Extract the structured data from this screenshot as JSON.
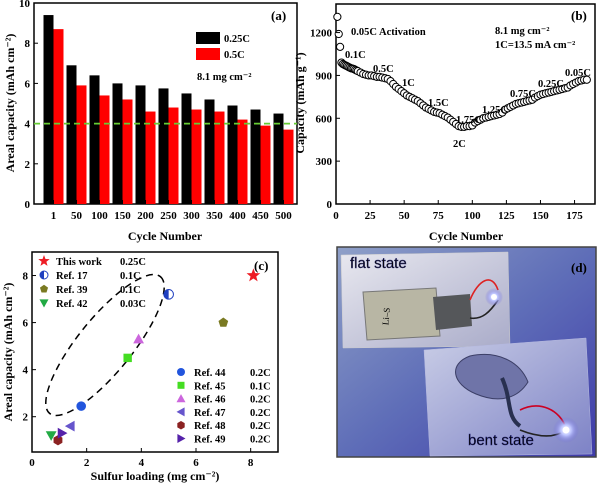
{
  "chart_data": [
    {
      "panel": "(a)",
      "type": "bar",
      "xlabel": "Cycle Number",
      "ylabel": "Areal capacity (mAh cm⁻²)",
      "ylim": [
        0,
        10
      ],
      "yticks": [
        "0",
        "2",
        "4",
        "6",
        "8",
        "10"
      ],
      "categories": [
        "1",
        "50",
        "100",
        "150",
        "200",
        "250",
        "300",
        "350",
        "400",
        "450",
        "500"
      ],
      "series": [
        {
          "name": "0.25C",
          "color": "#000000",
          "values": [
            9.4,
            6.9,
            6.4,
            6.0,
            5.9,
            5.75,
            5.5,
            5.2,
            4.9,
            4.7,
            4.5
          ]
        },
        {
          "name": "0.5C",
          "color": "#ff0000",
          "values": [
            8.7,
            5.9,
            5.4,
            5.2,
            4.6,
            4.8,
            4.7,
            4.6,
            4.2,
            3.9,
            3.7
          ]
        }
      ],
      "reference_line": {
        "value": 4.0,
        "color": "#66cc33",
        "style": "dashed"
      },
      "annotation": "8.1 mg cm⁻²",
      "legend_position": "top-right",
      "grid": false
    },
    {
      "panel": "(b)",
      "type": "scatter",
      "xlabel": "Cycle Number",
      "ylabel": "Capacity (mAh g⁻¹)",
      "xlim": [
        0,
        190
      ],
      "ylim": [
        0,
        1400
      ],
      "xticks": [
        "0",
        "25",
        "50",
        "75",
        "100",
        "125",
        "150",
        "175"
      ],
      "yticks": [
        "0",
        "300",
        "600",
        "900",
        "1200"
      ],
      "annotations": [
        "0.05C Activation",
        "0.1C",
        "0.5C",
        "1C",
        "1.5C",
        "1.75C",
        "2C",
        "1.25C",
        "0.75C",
        "0.25C",
        "0.05C",
        "8.1 mg cm⁻²",
        "1C=13.5 mA cm⁻²"
      ],
      "segments": [
        {
          "rate": "0.05C",
          "x": [
            1,
            2,
            3
          ],
          "y": [
            1310,
            1190,
            1100
          ]
        },
        {
          "rate": "0.1C",
          "x": [
            4,
            5,
            6,
            7,
            8,
            9,
            10,
            11,
            12,
            13,
            14,
            15
          ],
          "y": [
            990,
            980,
            975,
            970,
            965,
            960,
            955,
            950,
            948,
            945,
            940,
            935
          ]
        },
        {
          "rate": "0.5C",
          "x": [
            16,
            18,
            20,
            22,
            24,
            26,
            28,
            30,
            32,
            34,
            36,
            38
          ],
          "y": [
            930,
            920,
            910,
            905,
            900,
            900,
            895,
            890,
            890,
            885,
            880,
            875
          ]
        },
        {
          "rate": "1C",
          "x": [
            40,
            42,
            44,
            46,
            48,
            50,
            52,
            54,
            56,
            58,
            60
          ],
          "y": [
            860,
            840,
            820,
            805,
            790,
            775,
            760,
            750,
            740,
            730,
            720
          ]
        },
        {
          "rate": "1.5C",
          "x": [
            62,
            64,
            66,
            68,
            70,
            72,
            74,
            76,
            78,
            80
          ],
          "y": [
            705,
            690,
            675,
            665,
            655,
            645,
            640,
            635,
            625,
            615
          ]
        },
        {
          "rate": "1.75C",
          "x": [
            82,
            84,
            86,
            88
          ],
          "y": [
            605,
            590,
            575,
            560
          ]
        },
        {
          "rate": "2C",
          "x": [
            90,
            92,
            94,
            96,
            98,
            100
          ],
          "y": [
            545,
            540,
            540,
            545,
            545,
            550
          ]
        },
        {
          "rate": "1.25C",
          "x": [
            102,
            104,
            106,
            108,
            110,
            112,
            114,
            116,
            118,
            120,
            122
          ],
          "y": [
            570,
            580,
            590,
            600,
            605,
            610,
            615,
            620,
            625,
            630,
            640
          ]
        },
        {
          "rate": "0.75C",
          "x": [
            124,
            126,
            128,
            130,
            132,
            134,
            136,
            138,
            140,
            142,
            144
          ],
          "y": [
            660,
            670,
            680,
            690,
            700,
            705,
            710,
            715,
            720,
            725,
            730
          ]
        },
        {
          "rate": "0.25C",
          "x": [
            146,
            148,
            150,
            152,
            154,
            156,
            158,
            160,
            162,
            164,
            166,
            168,
            170
          ],
          "y": [
            745,
            755,
            765,
            770,
            775,
            780,
            785,
            790,
            795,
            800,
            805,
            810,
            815
          ]
        },
        {
          "rate": "0.05C",
          "x": [
            172,
            174,
            176,
            178,
            180,
            182,
            184
          ],
          "y": [
            830,
            840,
            850,
            860,
            865,
            870,
            870
          ]
        }
      ],
      "grid": false
    },
    {
      "panel": "(c)",
      "type": "scatter",
      "xlabel": "Sulfur loading (mg cm⁻²)",
      "ylabel": "Areal capacity (mAh cm⁻²)",
      "xlim": [
        0,
        9
      ],
      "ylim": [
        0.5,
        9
      ],
      "xticks": [
        "0",
        "2",
        "4",
        "6",
        "8"
      ],
      "yticks": [
        "2",
        "4",
        "6",
        "8"
      ],
      "points": [
        {
          "label": "This work",
          "rate": "0.25C",
          "x": 8.1,
          "y": 8.0,
          "marker": "star",
          "color": "#ee1c24"
        },
        {
          "label": "Ref. 17",
          "rate": "0.1C",
          "x": 5.0,
          "y": 7.2,
          "marker": "circle-half",
          "color": "#1f3fbf"
        },
        {
          "label": "Ref. 39",
          "rate": "0.1C",
          "x": 7.0,
          "y": 6.0,
          "marker": "pentagon",
          "color": "#7a7a22"
        },
        {
          "label": "Ref. 42",
          "rate": "0.03C",
          "x": 0.7,
          "y": 1.2,
          "marker": "triangle-down",
          "color": "#22aa44"
        },
        {
          "label": "Ref. 44",
          "rate": "0.2C",
          "x": 1.8,
          "y": 2.45,
          "marker": "circle",
          "color": "#2255dd"
        },
        {
          "label": "Ref. 45",
          "rate": "0.1C",
          "x": 3.5,
          "y": 4.5,
          "marker": "square",
          "color": "#44dd22"
        },
        {
          "label": "Ref. 46",
          "rate": "0.2C",
          "x": 3.9,
          "y": 5.3,
          "marker": "triangle-up",
          "color": "#cc66dd"
        },
        {
          "label": "Ref. 47",
          "rate": "0.2C",
          "x": 1.4,
          "y": 1.6,
          "marker": "triangle-left",
          "color": "#6655cc"
        },
        {
          "label": "Ref. 48",
          "rate": "0.2C",
          "x": 0.95,
          "y": 1.0,
          "marker": "hexagon",
          "color": "#8b2222"
        },
        {
          "label": "Ref. 49",
          "rate": "0.2C",
          "x": 1.1,
          "y": 1.3,
          "marker": "triangle-right",
          "color": "#5522aa"
        }
      ],
      "grid": false
    }
  ],
  "photo_panel": {
    "label": "(d)",
    "flat_label": "flat state",
    "bent_label": "bent state",
    "pouch_text": "Li–S"
  }
}
